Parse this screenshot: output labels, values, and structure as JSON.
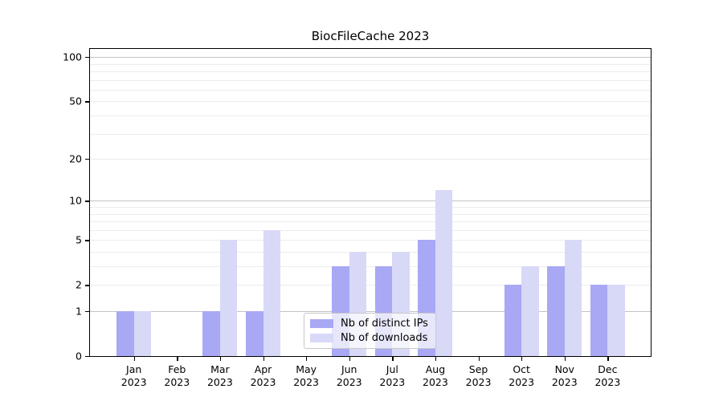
{
  "title": "BiocFileCache 2023",
  "legend": {
    "items": [
      {
        "label": "Nb of distinct IPs",
        "color": "#a8a8f5"
      },
      {
        "label": "Nb of downloads",
        "color": "#d8d8f7"
      }
    ]
  },
  "chart_data": {
    "type": "bar",
    "title": "BiocFileCache 2023",
    "categories": [
      "Jan 2023",
      "Feb 2023",
      "Mar 2023",
      "Apr 2023",
      "May 2023",
      "Jun 2023",
      "Jul 2023",
      "Aug 2023",
      "Sep 2023",
      "Oct 2023",
      "Nov 2023",
      "Dec 2023"
    ],
    "series": [
      {
        "name": "Nb of distinct IPs",
        "color": "#a8a8f5",
        "values": [
          1,
          0,
          1,
          1,
          0,
          3,
          3,
          5,
          0,
          2,
          3,
          2
        ]
      },
      {
        "name": "Nb of downloads",
        "color": "#d8d8f7",
        "values": [
          1,
          0,
          5,
          6,
          0,
          4,
          4,
          12,
          0,
          3,
          5,
          2
        ]
      }
    ],
    "xlabel": "",
    "ylabel": "",
    "y_scale": "log10(value+1)",
    "y_ticks": [
      0,
      1,
      2,
      5,
      10,
      20,
      50,
      100
    ],
    "y_major_gridlines": [
      1,
      10,
      100
    ],
    "y_minor_gridlines": [
      2,
      3,
      4,
      5,
      6,
      7,
      8,
      9,
      20,
      30,
      40,
      50,
      60,
      70,
      80,
      90
    ],
    "ylim": [
      0,
      113
    ],
    "grid": "horizontal",
    "legend_position": "lower center inside plot",
    "colors": {
      "background": "#ffffff",
      "major_grid": "#c3c3c3",
      "minor_grid": "#ececec",
      "axis": "#000000"
    }
  }
}
